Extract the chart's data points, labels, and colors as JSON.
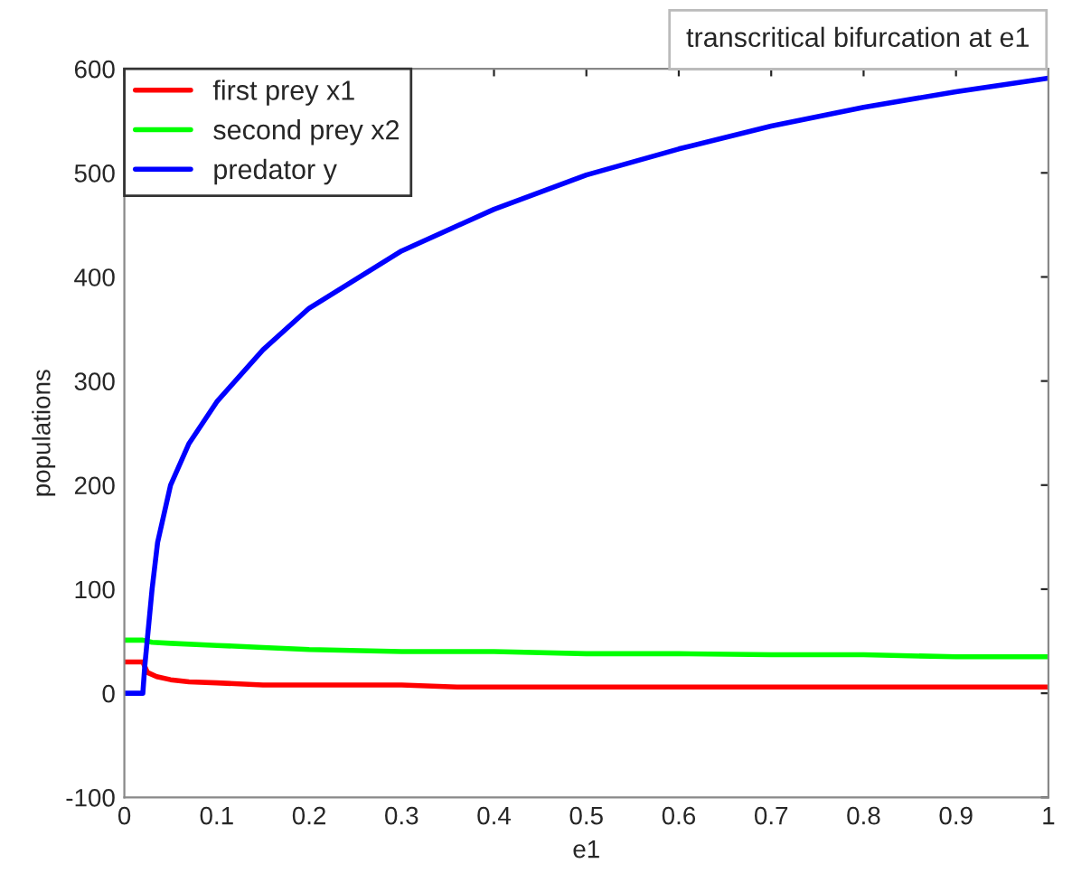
{
  "chart_data": {
    "type": "line",
    "xlabel": "e1",
    "ylabel": "populations",
    "annotations": [
      "transcritical bifurcation at e1"
    ],
    "xlim": [
      0,
      1
    ],
    "xticks": [
      0,
      0.1,
      0.2,
      0.3,
      0.4,
      0.5,
      0.6,
      0.7,
      0.8,
      0.9,
      1
    ],
    "ylim": [
      -100,
      600
    ],
    "yticks": [
      -100,
      0,
      100,
      200,
      300,
      400,
      500,
      600
    ],
    "grid": false,
    "legend": "top left",
    "marker": "none",
    "line_style": "solid",
    "series": [
      {
        "name": "first prey x1",
        "color": "#ff0000",
        "x": [
          0,
          0.02,
          0.025,
          0.035,
          0.05,
          0.07,
          0.1,
          0.15,
          0.2,
          0.3,
          0.36,
          0.4,
          0.6,
          0.8,
          1.0
        ],
        "values": [
          30,
          30,
          20,
          16,
          13,
          11,
          10,
          8,
          8,
          8,
          6,
          6,
          6,
          6,
          6
        ]
      },
      {
        "name": "second prey x2",
        "color": "#00ff00",
        "x": [
          0,
          0.02,
          0.03,
          0.05,
          0.1,
          0.15,
          0.2,
          0.3,
          0.4,
          0.5,
          0.6,
          0.7,
          0.8,
          0.9,
          1.0
        ],
        "values": [
          51,
          51,
          49,
          48,
          46,
          44,
          42,
          40,
          40,
          38,
          38,
          37,
          37,
          35,
          35
        ]
      },
      {
        "name": "predator y",
        "color": "#0000ff",
        "x": [
          0,
          0.02,
          0.022,
          0.03,
          0.036,
          0.05,
          0.07,
          0.1,
          0.15,
          0.2,
          0.3,
          0.4,
          0.5,
          0.6,
          0.7,
          0.8,
          0.9,
          1.0
        ],
        "values": [
          0,
          0,
          25,
          100,
          145,
          200,
          240,
          280,
          330,
          370,
          425,
          465,
          498,
          523,
          545,
          563,
          578,
          591
        ]
      }
    ]
  }
}
